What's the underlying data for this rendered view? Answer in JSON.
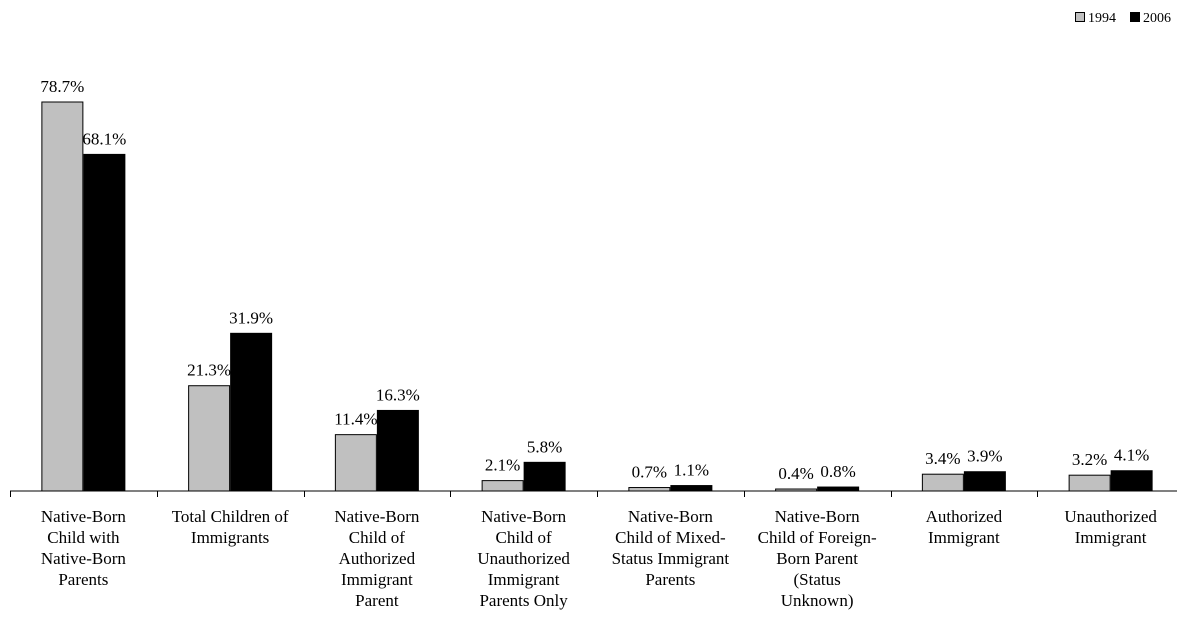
{
  "chart_data": {
    "type": "bar",
    "title": "",
    "xlabel": "",
    "ylabel": "",
    "ylim": [
      0,
      80
    ],
    "grid": false,
    "legend_position": "top-right",
    "categories": [
      [
        "Native-Born",
        "Child with",
        "Native-Born",
        "Parents"
      ],
      [
        "Total Children of",
        "Immigrants"
      ],
      [
        "Native-Born",
        "Child of",
        "Authorized",
        "Immigrant",
        "Parent"
      ],
      [
        "Native-Born",
        "Child of",
        "Unauthorized",
        "Immigrant",
        "Parents Only"
      ],
      [
        "Native-Born",
        "Child of Mixed-",
        "Status Immigrant",
        "Parents"
      ],
      [
        "Native-Born",
        "Child of Foreign-",
        "Born Parent",
        "(Status",
        "Unknown)"
      ],
      [
        "Authorized",
        "Immigrant"
      ],
      [
        "Unauthorized",
        "Immigrant"
      ]
    ],
    "series": [
      {
        "name": "1994",
        "color": "#c0c0c0",
        "values": [
          78.7,
          21.3,
          11.4,
          2.1,
          0.7,
          0.4,
          3.4,
          3.2
        ],
        "labels": [
          "78.7%",
          "21.3%",
          "11.4%",
          "2.1%",
          "0.7%",
          "0.4%",
          "3.4%",
          "3.2%"
        ]
      },
      {
        "name": "2006",
        "color": "#000000",
        "values": [
          68.1,
          31.9,
          16.3,
          5.8,
          1.1,
          0.8,
          3.9,
          4.1
        ],
        "labels": [
          "68.1%",
          "31.9%",
          "16.3%",
          "5.8%",
          "1.1%",
          "0.8%",
          "3.9%",
          "4.1%"
        ]
      }
    ]
  }
}
